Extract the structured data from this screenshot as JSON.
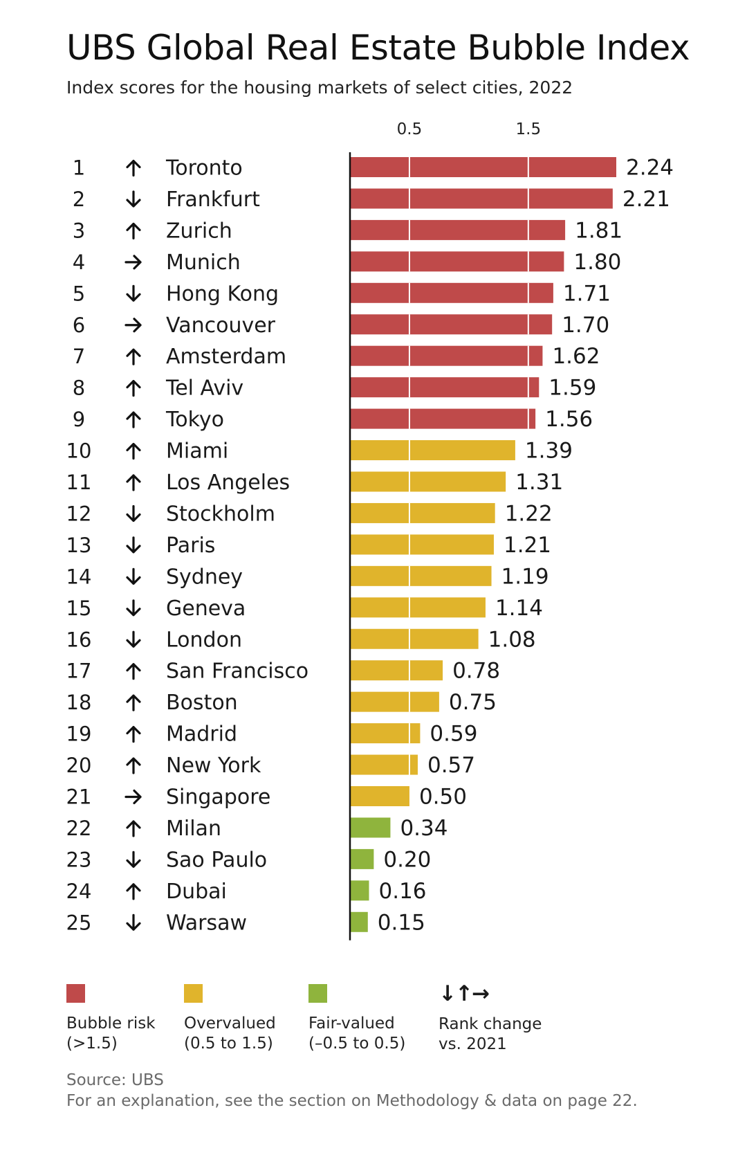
{
  "title": "UBS Global Real Estate Bubble Index",
  "subtitle": "Index scores for the housing markets of select cities, 2022",
  "chart_data": {
    "type": "bar",
    "orientation": "horizontal",
    "title": "UBS Global Real Estate Bubble Index",
    "subtitle": "Index scores for the housing markets of select cities, 2022",
    "x_ticks": [
      "0.5",
      "1.5"
    ],
    "xlim": [
      0,
      2.24
    ],
    "gridlines": [
      0.5,
      1.5
    ],
    "colors": {
      "bubble": "#bf4a4a",
      "overvalued": "#e0b42c",
      "fair": "#8fb43d",
      "grid": "#ffffff",
      "axis": "#111111"
    },
    "rows": [
      {
        "rank": "1",
        "change": "up",
        "city": "Toronto",
        "value": 2.24,
        "label": "2.24",
        "category": "bubble"
      },
      {
        "rank": "2",
        "change": "down",
        "city": "Frankfurt",
        "value": 2.21,
        "label": "2.21",
        "category": "bubble"
      },
      {
        "rank": "3",
        "change": "up",
        "city": "Zurich",
        "value": 1.81,
        "label": "1.81",
        "category": "bubble"
      },
      {
        "rank": "4",
        "change": "right",
        "city": "Munich",
        "value": 1.8,
        "label": "1.80",
        "category": "bubble"
      },
      {
        "rank": "5",
        "change": "down",
        "city": "Hong Kong",
        "value": 1.71,
        "label": "1.71",
        "category": "bubble"
      },
      {
        "rank": "6",
        "change": "right",
        "city": "Vancouver",
        "value": 1.7,
        "label": "1.70",
        "category": "bubble"
      },
      {
        "rank": "7",
        "change": "up",
        "city": "Amsterdam",
        "value": 1.62,
        "label": "1.62",
        "category": "bubble"
      },
      {
        "rank": "8",
        "change": "up",
        "city": "Tel Aviv",
        "value": 1.59,
        "label": "1.59",
        "category": "bubble"
      },
      {
        "rank": "9",
        "change": "up",
        "city": "Tokyo",
        "value": 1.56,
        "label": "1.56",
        "category": "bubble"
      },
      {
        "rank": "10",
        "change": "up",
        "city": "Miami",
        "value": 1.39,
        "label": "1.39",
        "category": "overvalued"
      },
      {
        "rank": "11",
        "change": "up",
        "city": "Los Angeles",
        "value": 1.31,
        "label": "1.31",
        "category": "overvalued"
      },
      {
        "rank": "12",
        "change": "down",
        "city": "Stockholm",
        "value": 1.22,
        "label": "1.22",
        "category": "overvalued"
      },
      {
        "rank": "13",
        "change": "down",
        "city": "Paris",
        "value": 1.21,
        "label": "1.21",
        "category": "overvalued"
      },
      {
        "rank": "14",
        "change": "down",
        "city": "Sydney",
        "value": 1.19,
        "label": "1.19",
        "category": "overvalued"
      },
      {
        "rank": "15",
        "change": "down",
        "city": "Geneva",
        "value": 1.14,
        "label": "1.14",
        "category": "overvalued"
      },
      {
        "rank": "16",
        "change": "down",
        "city": "London",
        "value": 1.08,
        "label": "1.08",
        "category": "overvalued"
      },
      {
        "rank": "17",
        "change": "up",
        "city": "San Francisco",
        "value": 0.78,
        "label": "0.78",
        "category": "overvalued"
      },
      {
        "rank": "18",
        "change": "up",
        "city": "Boston",
        "value": 0.75,
        "label": "0.75",
        "category": "overvalued"
      },
      {
        "rank": "19",
        "change": "up",
        "city": "Madrid",
        "value": 0.59,
        "label": "0.59",
        "category": "overvalued"
      },
      {
        "rank": "20",
        "change": "up",
        "city": "New York",
        "value": 0.57,
        "label": "0.57",
        "category": "overvalued"
      },
      {
        "rank": "21",
        "change": "right",
        "city": "Singapore",
        "value": 0.5,
        "label": "0.50",
        "category": "overvalued"
      },
      {
        "rank": "22",
        "change": "up",
        "city": "Milan",
        "value": 0.34,
        "label": "0.34",
        "category": "fair"
      },
      {
        "rank": "23",
        "change": "down",
        "city": "Sao Paulo",
        "value": 0.2,
        "label": "0.20",
        "category": "fair"
      },
      {
        "rank": "24",
        "change": "up",
        "city": "Dubai",
        "value": 0.16,
        "label": "0.16",
        "category": "fair"
      },
      {
        "rank": "25",
        "change": "down",
        "city": "Warsaw",
        "value": 0.15,
        "label": "0.15",
        "category": "fair"
      }
    ]
  },
  "legend": {
    "bubble": {
      "line1": "Bubble risk",
      "line2": "(>1.5)",
      "color": "#bf4a4a"
    },
    "overvalued": {
      "line1": "Overvalued",
      "line2": "(0.5 to 1.5)",
      "color": "#e0b42c"
    },
    "fair": {
      "line1": "Fair-valued",
      "line2": "(–0.5 to 0.5)",
      "color": "#8fb43d"
    },
    "rank": {
      "glyph": "↓↑→",
      "line1": "Rank change",
      "line2": "vs. 2021"
    }
  },
  "footer": {
    "source": "Source: UBS",
    "note": "For an explanation, see the section on Methodology & data on page 22."
  }
}
